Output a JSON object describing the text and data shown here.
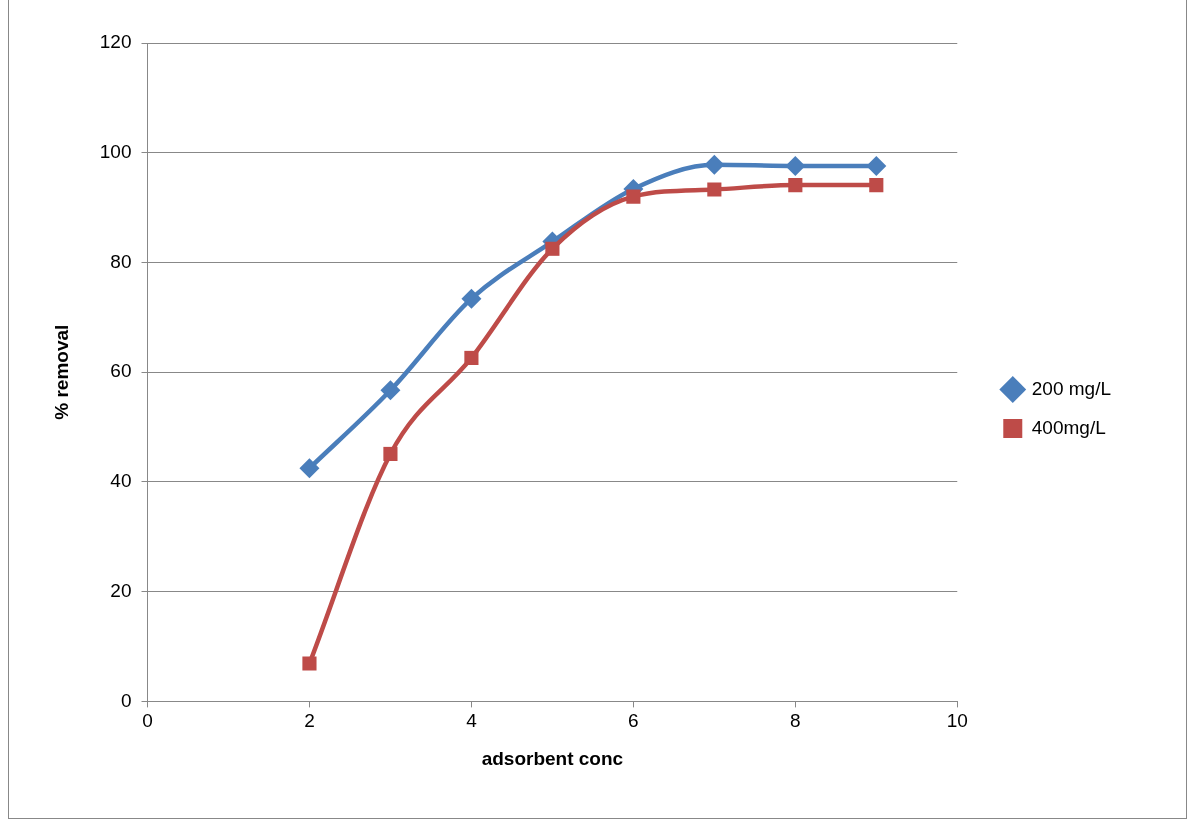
{
  "chart_data": {
    "type": "line",
    "xlabel": "adsorbent conc",
    "ylabel": "% removal",
    "x": [
      2,
      3,
      4,
      5,
      6,
      7,
      8,
      9
    ],
    "series": [
      {
        "name": "200 mg/L",
        "color": "#4a7ebb",
        "marker": "diamond",
        "values": [
          42.5,
          56.7,
          73.4,
          83.8,
          93.4,
          97.8,
          97.6,
          97.6
        ]
      },
      {
        "name": "400mg/L",
        "color": "#be4b48",
        "marker": "square",
        "values": [
          6.9,
          45.1,
          62.6,
          82.5,
          92.0,
          93.3,
          94.1,
          94.1
        ]
      }
    ],
    "xlim": [
      0,
      10
    ],
    "xticks": [
      0,
      2,
      4,
      6,
      8,
      10
    ],
    "ylim": [
      0,
      120
    ],
    "yticks": [
      0,
      20,
      40,
      60,
      80,
      100,
      120
    ],
    "grid": "y",
    "legend": "right"
  }
}
